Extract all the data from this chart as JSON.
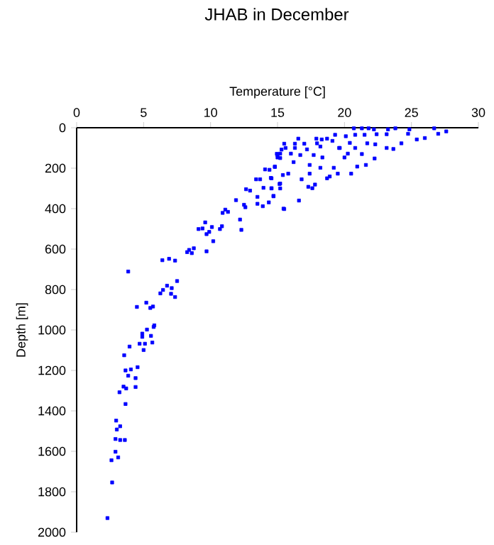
{
  "chart_data": {
    "type": "scatter",
    "title": "JHAB in December",
    "xlabel": "Temperature [°C]",
    "ylabel": "Depth [m]",
    "xlim": [
      0,
      30
    ],
    "ylim": [
      2000,
      0
    ],
    "xticks": [
      0,
      5,
      10,
      15,
      20,
      25,
      30
    ],
    "yticks": [
      0,
      200,
      400,
      600,
      800,
      1000,
      1200,
      1400,
      1600,
      1800,
      2000
    ],
    "marker": "square",
    "series": [
      {
        "color": "#0000ff",
        "x": [
          2.3,
          2.65,
          2.6,
          3.1,
          2.9,
          2.9,
          3.25,
          3.6,
          3.0,
          3.25,
          2.95,
          3.65,
          3.2,
          3.5,
          3.7,
          4.4,
          4.4,
          3.85,
          3.65,
          4.05,
          4.55,
          3.55,
          3.95,
          4.7,
          5.1,
          5.65,
          5.0,
          5.55,
          4.9,
          4.9,
          5.25,
          5.75,
          3.85,
          4.5,
          5.2,
          5.5,
          5.7,
          5.8,
          6.25,
          6.45,
          6.75,
          7.1,
          7.05,
          7.35,
          7.5,
          6.4,
          6.9,
          7.35,
          8.25,
          8.4,
          8.75,
          8.6,
          9.7,
          10.2,
          9.7,
          9.9,
          9.1,
          9.4,
          10.1,
          9.6,
          10.85,
          10.7,
          12.3,
          12.2,
          10.9,
          11.3,
          11.1,
          11.9,
          12.6,
          12.5,
          13.5,
          13.9,
          14.35,
          13.5,
          12.65,
          12.95,
          13.95,
          14.55,
          15.2,
          13.4,
          13.7,
          14.5,
          15.15,
          15.4,
          14.7,
          15.45,
          14.07,
          14.4,
          14.8,
          15.0,
          15.3,
          14.95,
          15.2,
          20.7,
          21.3,
          21.8,
          22.2,
          23.25,
          23.8,
          24.85,
          26.7,
          27.6,
          27.0,
          26.0,
          25.4,
          24.75,
          23.15,
          22.4,
          21.5,
          20.8,
          20.1,
          19.3,
          18.7,
          18.3,
          17.9,
          16.55,
          16.3,
          15.5,
          15.6,
          16.3,
          17.0,
          17.2,
          17.95,
          18.2,
          19.1,
          19.65,
          20.4,
          20.8,
          21.7,
          22.3,
          23.15,
          24.25,
          23.65,
          22.25,
          21.3,
          20.25,
          20.0,
          19.6,
          18.35,
          17.7,
          16.7,
          16.0,
          15.2,
          15.0,
          16.2,
          17.4,
          18.2,
          19.2,
          20.95,
          21.6,
          20.5,
          19.5,
          18.9,
          18.7,
          17.4,
          16.8,
          15.8,
          14.8,
          14.55,
          15.2,
          17.3,
          17.8,
          17.6,
          14.55,
          14.7,
          16.6,
          15.5
        ],
        "values": [
          1930,
          1754,
          1644,
          1630,
          1602,
          1539,
          1544,
          1544,
          1492,
          1476,
          1448,
          1366,
          1308,
          1280,
          1289,
          1282,
          1238,
          1226,
          1200,
          1195,
          1184,
          1125,
          1082,
          1068,
          1068,
          1062,
          1099,
          1029,
          1034,
          1018,
          998,
          985,
          711,
          886,
          865,
          891,
          884,
          977,
          819,
          802,
          781,
          793,
          821,
          837,
          758,
          655,
          648,
          657,
          615,
          604,
          596,
          620,
          611,
          561,
          526,
          515,
          501,
          498,
          491,
          468,
          487,
          501,
          505,
          454,
          421,
          416,
          405,
          358,
          393,
          381,
          376,
          388,
          369,
          342,
          304,
          311,
          297,
          300,
          300,
          255,
          255,
          248,
          278,
          234,
          337,
          400,
          206,
          208,
          192,
          136,
          108,
          129,
          150,
          3,
          3,
          3,
          8,
          8,
          3,
          8,
          3,
          18,
          30,
          51,
          58,
          30,
          32,
          32,
          35,
          35,
          42,
          35,
          54,
          58,
          54,
          54,
          79,
          79,
          100,
          100,
          79,
          107,
          77,
          93,
          65,
          100,
          75,
          100,
          77,
          82,
          100,
          77,
          105,
          152,
          130,
          128,
          147,
          100,
          147,
          135,
          135,
          128,
          128,
          147,
          170,
          184,
          198,
          198,
          192,
          184,
          227,
          227,
          241,
          250,
          227,
          255,
          227,
          194,
          250,
          276,
          292,
          281,
          299,
          299,
          339,
          360,
          402
        ]
      }
    ]
  }
}
